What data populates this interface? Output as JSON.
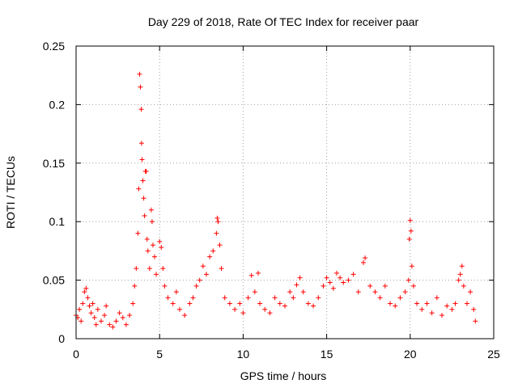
{
  "chart_data": {
    "type": "scatter",
    "title": "Day 229 of 2018, Rate Of TEC Index for receiver paar",
    "xlabel": "GPS time / hours",
    "ylabel": "ROTI / TECUs",
    "xlim": [
      0,
      25
    ],
    "ylim": [
      0,
      0.25
    ],
    "xticks": [
      0,
      5,
      10,
      15,
      20,
      25
    ],
    "xtick_labels": [
      "0",
      "5",
      "10",
      "15",
      "20",
      "25"
    ],
    "yticks": [
      0,
      0.05,
      0.1,
      0.15,
      0.2,
      0.25
    ],
    "ytick_labels": [
      "0",
      "0.05",
      "0.1",
      "0.15",
      "0.2",
      "0.25"
    ],
    "grid": true,
    "marker": "+",
    "marker_color": "#ff0000",
    "series": [
      {
        "name": "ROTI",
        "points": [
          [
            0.0,
            0.02
          ],
          [
            0.1,
            0.018
          ],
          [
            0.2,
            0.025
          ],
          [
            0.3,
            0.015
          ],
          [
            0.4,
            0.03
          ],
          [
            0.5,
            0.04
          ],
          [
            0.6,
            0.043
          ],
          [
            0.7,
            0.035
          ],
          [
            0.8,
            0.028
          ],
          [
            0.9,
            0.022
          ],
          [
            1.0,
            0.03
          ],
          [
            1.1,
            0.018
          ],
          [
            1.2,
            0.012
          ],
          [
            1.3,
            0.025
          ],
          [
            1.5,
            0.015
          ],
          [
            1.7,
            0.02
          ],
          [
            1.8,
            0.028
          ],
          [
            2.0,
            0.012
          ],
          [
            2.2,
            0.01
          ],
          [
            2.4,
            0.015
          ],
          [
            2.6,
            0.022
          ],
          [
            2.8,
            0.018
          ],
          [
            3.0,
            0.012
          ],
          [
            3.2,
            0.02
          ],
          [
            3.4,
            0.03
          ],
          [
            3.5,
            0.045
          ],
          [
            3.6,
            0.06
          ],
          [
            3.7,
            0.09
          ],
          [
            3.75,
            0.128
          ],
          [
            3.8,
            0.226
          ],
          [
            3.85,
            0.215
          ],
          [
            3.9,
            0.196
          ],
          [
            3.92,
            0.167
          ],
          [
            3.95,
            0.153
          ],
          [
            4.0,
            0.135
          ],
          [
            4.05,
            0.12
          ],
          [
            4.1,
            0.105
          ],
          [
            4.15,
            0.143
          ],
          [
            4.2,
            0.143
          ],
          [
            4.25,
            0.085
          ],
          [
            4.3,
            0.075
          ],
          [
            4.4,
            0.06
          ],
          [
            4.5,
            0.11
          ],
          [
            4.55,
            0.1
          ],
          [
            4.6,
            0.08
          ],
          [
            4.7,
            0.07
          ],
          [
            4.8,
            0.055
          ],
          [
            5.0,
            0.083
          ],
          [
            5.1,
            0.078
          ],
          [
            5.2,
            0.06
          ],
          [
            5.3,
            0.045
          ],
          [
            5.5,
            0.035
          ],
          [
            5.8,
            0.03
          ],
          [
            6.0,
            0.04
          ],
          [
            6.2,
            0.025
          ],
          [
            6.5,
            0.02
          ],
          [
            6.8,
            0.03
          ],
          [
            7.0,
            0.035
          ],
          [
            7.2,
            0.045
          ],
          [
            7.4,
            0.05
          ],
          [
            7.6,
            0.062
          ],
          [
            7.8,
            0.055
          ],
          [
            8.0,
            0.07
          ],
          [
            8.2,
            0.075
          ],
          [
            8.4,
            0.09
          ],
          [
            8.45,
            0.103
          ],
          [
            8.5,
            0.1
          ],
          [
            8.6,
            0.08
          ],
          [
            8.7,
            0.06
          ],
          [
            8.9,
            0.035
          ],
          [
            9.2,
            0.03
          ],
          [
            9.5,
            0.025
          ],
          [
            9.8,
            0.03
          ],
          [
            10.0,
            0.022
          ],
          [
            10.3,
            0.035
          ],
          [
            10.5,
            0.054
          ],
          [
            10.7,
            0.04
          ],
          [
            10.9,
            0.056
          ],
          [
            11.0,
            0.03
          ],
          [
            11.3,
            0.025
          ],
          [
            11.6,
            0.022
          ],
          [
            11.9,
            0.035
          ],
          [
            12.2,
            0.03
          ],
          [
            12.5,
            0.028
          ],
          [
            12.8,
            0.04
          ],
          [
            13.0,
            0.035
          ],
          [
            13.2,
            0.046
          ],
          [
            13.4,
            0.052
          ],
          [
            13.6,
            0.04
          ],
          [
            13.9,
            0.03
          ],
          [
            14.2,
            0.028
          ],
          [
            14.5,
            0.035
          ],
          [
            14.8,
            0.045
          ],
          [
            15.0,
            0.052
          ],
          [
            15.2,
            0.048
          ],
          [
            15.4,
            0.043
          ],
          [
            15.6,
            0.056
          ],
          [
            15.8,
            0.052
          ],
          [
            16.0,
            0.048
          ],
          [
            16.3,
            0.05
          ],
          [
            16.6,
            0.055
          ],
          [
            16.9,
            0.04
          ],
          [
            17.2,
            0.065
          ],
          [
            17.3,
            0.069
          ],
          [
            17.6,
            0.045
          ],
          [
            17.9,
            0.04
          ],
          [
            18.2,
            0.035
          ],
          [
            18.5,
            0.045
          ],
          [
            18.8,
            0.03
          ],
          [
            19.1,
            0.028
          ],
          [
            19.4,
            0.035
          ],
          [
            19.7,
            0.04
          ],
          [
            19.9,
            0.05
          ],
          [
            19.95,
            0.085
          ],
          [
            20.0,
            0.101
          ],
          [
            20.05,
            0.092
          ],
          [
            20.1,
            0.062
          ],
          [
            20.2,
            0.045
          ],
          [
            20.4,
            0.03
          ],
          [
            20.7,
            0.025
          ],
          [
            21.0,
            0.03
          ],
          [
            21.3,
            0.022
          ],
          [
            21.6,
            0.035
          ],
          [
            21.9,
            0.02
          ],
          [
            22.2,
            0.028
          ],
          [
            22.5,
            0.025
          ],
          [
            22.7,
            0.03
          ],
          [
            22.9,
            0.05
          ],
          [
            23.0,
            0.055
          ],
          [
            23.1,
            0.062
          ],
          [
            23.2,
            0.045
          ],
          [
            23.4,
            0.03
          ],
          [
            23.6,
            0.04
          ],
          [
            23.8,
            0.025
          ],
          [
            23.9,
            0.015
          ]
        ]
      }
    ]
  }
}
